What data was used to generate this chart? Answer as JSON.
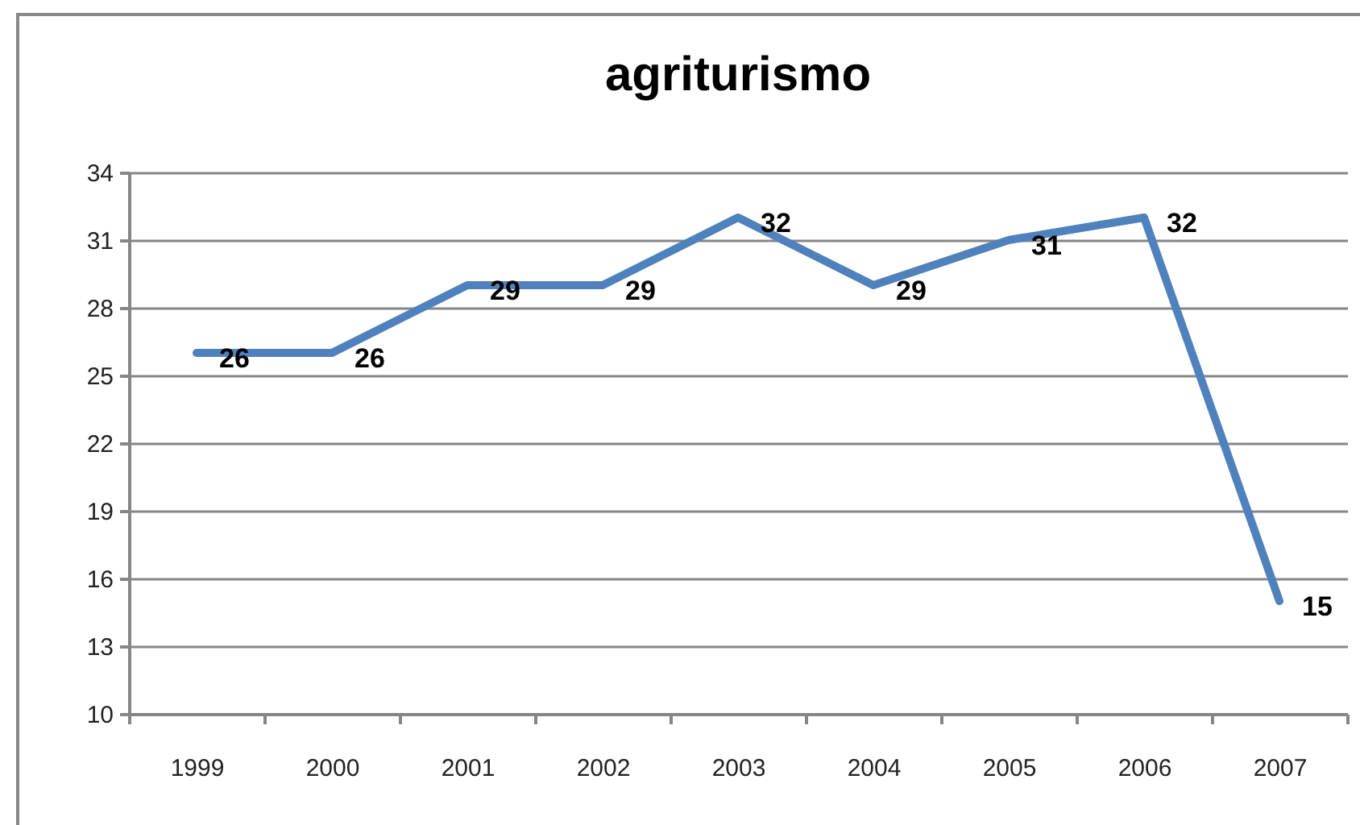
{
  "chart_data": {
    "type": "line",
    "title": "agriturismo",
    "categories": [
      "1999",
      "2000",
      "2001",
      "2002",
      "2003",
      "2004",
      "2005",
      "2006",
      "2007"
    ],
    "values": [
      26,
      26,
      29,
      29,
      32,
      29,
      31,
      32,
      15
    ],
    "color": "#4f81bd",
    "ylim": [
      10,
      34
    ],
    "yticks": [
      10,
      13,
      16,
      19,
      22,
      25,
      28,
      31,
      34
    ],
    "grid": "y",
    "data_labels": true
  }
}
